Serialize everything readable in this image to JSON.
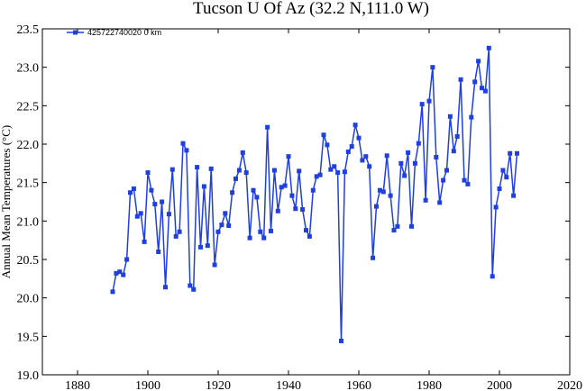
{
  "chart_data": {
    "type": "line",
    "title": "Tucson U Of Az (32.2 N,111.0 W)",
    "xlabel": "",
    "ylabel": "Annual Mean Temperatures (°C)",
    "xlim": [
      1870,
      2020
    ],
    "ylim": [
      19.0,
      23.5
    ],
    "xticks": [
      1880,
      1900,
      1920,
      1940,
      1960,
      1980,
      2000,
      2020
    ],
    "yticks": [
      19.0,
      19.5,
      20.0,
      20.5,
      21.0,
      21.5,
      22.0,
      22.5,
      23.0,
      23.5
    ],
    "yticks_labels": [
      "19.0",
      "19.5",
      "20.0",
      "20.5",
      "21.0",
      "21.5",
      "22.0",
      "22.5",
      "23.0",
      "23.5"
    ],
    "grid": false,
    "legend_position": "top-left",
    "series_color": "#1f3fe0",
    "series": [
      {
        "name": "425722740020  0 km",
        "x": [
          1890,
          1891,
          1892,
          1893,
          1894,
          1895,
          1896,
          1897,
          1898,
          1899,
          1900,
          1901,
          1902,
          1903,
          1904,
          1905,
          1906,
          1907,
          1908,
          1909,
          1910,
          1911,
          1912,
          1913,
          1914,
          1915,
          1916,
          1917,
          1918,
          1919,
          1920,
          1921,
          1922,
          1923,
          1924,
          1925,
          1926,
          1927,
          1928,
          1929,
          1930,
          1931,
          1932,
          1933,
          1934,
          1935,
          1936,
          1937,
          1938,
          1939,
          1940,
          1941,
          1942,
          1943,
          1944,
          1945,
          1946,
          1947,
          1948,
          1949,
          1950,
          1951,
          1952,
          1953,
          1954,
          1955,
          1956,
          1957,
          1958,
          1959,
          1960,
          1961,
          1962,
          1963,
          1964,
          1965,
          1966,
          1967,
          1968,
          1969,
          1970,
          1971,
          1972,
          1973,
          1974,
          1975,
          1976,
          1977,
          1978,
          1979,
          1980,
          1981,
          1982,
          1983,
          1984,
          1985,
          1986,
          1987,
          1988,
          1989,
          1990,
          1991,
          1992,
          1993,
          1994,
          1995,
          1996,
          1997,
          1998,
          1999,
          2000,
          2001,
          2002,
          2003,
          2004,
          2005
        ],
        "y": [
          20.08,
          20.32,
          20.34,
          20.3,
          20.5,
          21.37,
          21.42,
          21.06,
          21.1,
          20.73,
          21.63,
          21.4,
          21.22,
          20.6,
          21.25,
          20.14,
          21.09,
          21.67,
          20.8,
          20.86,
          22.01,
          21.92,
          20.16,
          20.11,
          21.7,
          20.66,
          21.45,
          20.68,
          21.68,
          20.43,
          20.86,
          20.95,
          21.1,
          20.94,
          21.37,
          21.55,
          21.66,
          21.89,
          21.63,
          20.78,
          21.4,
          21.31,
          20.86,
          20.78,
          22.22,
          20.87,
          21.66,
          21.13,
          21.44,
          21.46,
          21.84,
          21.33,
          21.16,
          21.65,
          21.15,
          20.88,
          20.8,
          21.4,
          21.58,
          21.6,
          22.12,
          21.99,
          21.67,
          21.71,
          21.63,
          19.44,
          21.64,
          21.9,
          21.97,
          22.25,
          22.08,
          21.79,
          21.84,
          21.71,
          20.52,
          21.19,
          21.4,
          21.38,
          21.85,
          21.33,
          20.88,
          20.93,
          21.75,
          21.59,
          21.89,
          20.93,
          21.75,
          22.01,
          22.52,
          21.27,
          22.56,
          23.0,
          21.83,
          21.24,
          21.53,
          21.66,
          22.36,
          21.91,
          22.1,
          22.84,
          21.53,
          21.48,
          22.35,
          22.81,
          23.08,
          22.73,
          22.69,
          23.25,
          20.28,
          21.18,
          21.42,
          21.66,
          21.57,
          21.88,
          21.33,
          21.88
        ]
      }
    ]
  }
}
